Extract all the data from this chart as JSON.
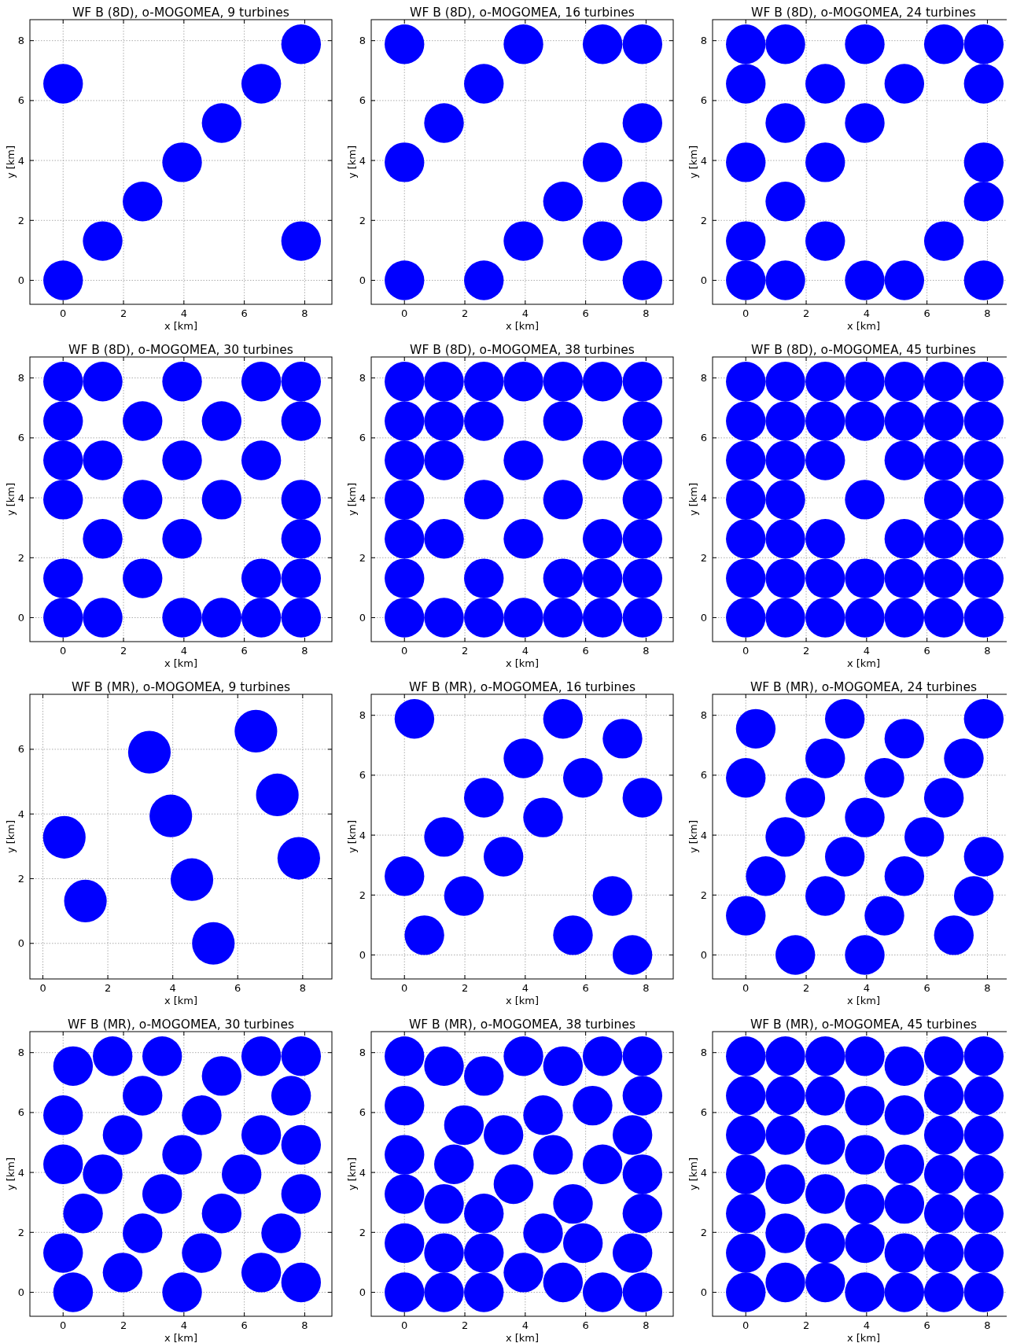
{
  "chart_data": [
    {
      "type": "scatter",
      "title": "WF B (8D), o-MOGOMEA, 9 turbines",
      "xlabel": "x [km]",
      "ylabel": "y [km]",
      "color": "#0000ff",
      "marker": "circle",
      "grid": true,
      "xlim": [
        -1.1,
        8.9
      ],
      "ylim": [
        -0.8,
        8.7
      ],
      "xticks": [
        0,
        2,
        4,
        6,
        8
      ],
      "yticks": [
        0,
        2,
        4,
        6,
        8
      ],
      "x": [
        0,
        1.31,
        2.63,
        3.94,
        5.25,
        6.56,
        7.88,
        0,
        7.88
      ],
      "values": [
        0,
        1.31,
        2.63,
        3.94,
        5.25,
        6.56,
        7.88,
        6.56,
        1.31
      ]
    },
    {
      "type": "scatter",
      "title": "WF B (8D), o-MOGOMEA, 16 turbines",
      "xlabel": "x [km]",
      "ylabel": "y [km]",
      "color": "#0000ff",
      "marker": "circle",
      "grid": true,
      "xlim": [
        -1.1,
        8.9
      ],
      "ylim": [
        -0.8,
        8.7
      ],
      "xticks": [
        0,
        2,
        4,
        6,
        8
      ],
      "yticks": [
        0,
        2,
        4,
        6,
        8
      ],
      "x": [
        0,
        3.94,
        6.56,
        7.88,
        2.63,
        1.31,
        7.88,
        0,
        6.56,
        5.25,
        7.88,
        3.94,
        6.56,
        0,
        2.63,
        7.88
      ],
      "values": [
        7.88,
        7.88,
        7.88,
        7.88,
        6.56,
        5.25,
        5.25,
        3.94,
        3.94,
        2.63,
        2.63,
        1.31,
        1.31,
        0,
        0,
        0
      ]
    },
    {
      "type": "scatter",
      "title": "WF B (8D), o-MOGOMEA, 24 turbines",
      "xlabel": "x [km]",
      "ylabel": "y [km]",
      "color": "#0000ff",
      "marker": "circle",
      "grid": true,
      "xlim": [
        -1.1,
        8.9
      ],
      "ylim": [
        -0.8,
        8.7
      ],
      "xticks": [
        0,
        2,
        4,
        6,
        8
      ],
      "yticks": [
        0,
        2,
        4,
        6,
        8
      ],
      "x": [
        0,
        1.31,
        3.94,
        6.56,
        7.88,
        0,
        2.63,
        5.25,
        7.88,
        1.31,
        3.94,
        0,
        2.63,
        7.88,
        1.31,
        7.88,
        0,
        2.63,
        6.56,
        0,
        1.31,
        3.94,
        5.25,
        7.88
      ],
      "values": [
        7.88,
        7.88,
        7.88,
        7.88,
        7.88,
        6.56,
        6.56,
        6.56,
        6.56,
        5.25,
        5.25,
        3.94,
        3.94,
        3.94,
        2.63,
        2.63,
        1.31,
        1.31,
        1.31,
        0,
        0,
        0,
        0,
        0
      ]
    },
    {
      "type": "scatter",
      "title": "WF B (8D), o-MOGOMEA, 30 turbines",
      "xlabel": "x [km]",
      "ylabel": "y [km]",
      "color": "#0000ff",
      "marker": "circle",
      "grid": true,
      "xlim": [
        -1.1,
        8.9
      ],
      "ylim": [
        -0.8,
        8.7
      ],
      "xticks": [
        0,
        2,
        4,
        6,
        8
      ],
      "yticks": [
        0,
        2,
        4,
        6,
        8
      ],
      "x": [
        0,
        1.31,
        3.94,
        6.56,
        7.88,
        0,
        2.63,
        5.25,
        7.88,
        0,
        1.31,
        3.94,
        6.56,
        0,
        2.63,
        5.25,
        7.88,
        1.31,
        3.94,
        7.88,
        0,
        2.63,
        6.56,
        7.88,
        0,
        1.31,
        3.94,
        5.25,
        6.56,
        7.88
      ],
      "values": [
        7.88,
        7.88,
        7.88,
        7.88,
        7.88,
        6.56,
        6.56,
        6.56,
        6.56,
        5.25,
        5.25,
        5.25,
        5.25,
        3.94,
        3.94,
        3.94,
        3.94,
        2.63,
        2.63,
        2.63,
        1.31,
        1.31,
        1.31,
        1.31,
        0,
        0,
        0,
        0,
        0,
        0
      ]
    },
    {
      "type": "scatter",
      "title": "WF B (8D), o-MOGOMEA, 38 turbines",
      "xlabel": "x [km]",
      "ylabel": "y [km]",
      "color": "#0000ff",
      "marker": "circle",
      "grid": true,
      "xlim": [
        -1.1,
        8.9
      ],
      "ylim": [
        -0.8,
        8.7
      ],
      "xticks": [
        0,
        2,
        4,
        6,
        8
      ],
      "yticks": [
        0,
        2,
        4,
        6,
        8
      ],
      "x": [
        0,
        1.31,
        2.63,
        3.94,
        5.25,
        6.56,
        7.88,
        0,
        1.31,
        2.63,
        5.25,
        7.88,
        0,
        1.31,
        3.94,
        6.56,
        7.88,
        0,
        2.63,
        5.25,
        7.88,
        0,
        1.31,
        3.94,
        6.56,
        7.88,
        0,
        2.63,
        5.25,
        6.56,
        7.88,
        0,
        1.31,
        2.63,
        3.94,
        5.25,
        6.56,
        7.88
      ],
      "values": [
        7.88,
        7.88,
        7.88,
        7.88,
        7.88,
        7.88,
        7.88,
        6.56,
        6.56,
        6.56,
        6.56,
        6.56,
        5.25,
        5.25,
        5.25,
        5.25,
        5.25,
        3.94,
        3.94,
        3.94,
        3.94,
        2.63,
        2.63,
        2.63,
        2.63,
        2.63,
        1.31,
        1.31,
        1.31,
        1.31,
        1.31,
        0,
        0,
        0,
        0,
        0,
        0,
        0
      ]
    },
    {
      "type": "scatter",
      "title": "WF B (8D), o-MOGOMEA, 45 turbines",
      "xlabel": "x [km]",
      "ylabel": "y [km]",
      "color": "#0000ff",
      "marker": "circle",
      "grid": true,
      "xlim": [
        -1.1,
        8.9
      ],
      "ylim": [
        -0.8,
        8.7
      ],
      "xticks": [
        0,
        2,
        4,
        6,
        8
      ],
      "yticks": [
        0,
        2,
        4,
        6,
        8
      ],
      "x": [
        0,
        1.31,
        2.63,
        3.94,
        5.25,
        6.56,
        7.88,
        0,
        1.31,
        2.63,
        3.94,
        5.25,
        6.56,
        7.88,
        0,
        1.31,
        2.63,
        5.25,
        6.56,
        7.88,
        0,
        1.31,
        3.94,
        6.56,
        7.88,
        0,
        1.31,
        2.63,
        5.25,
        6.56,
        7.88,
        0,
        1.31,
        2.63,
        3.94,
        5.25,
        6.56,
        7.88,
        0,
        1.31,
        2.63,
        3.94,
        5.25,
        6.56,
        7.88
      ],
      "values": [
        7.88,
        7.88,
        7.88,
        7.88,
        7.88,
        7.88,
        7.88,
        6.56,
        6.56,
        6.56,
        6.56,
        6.56,
        6.56,
        6.56,
        5.25,
        5.25,
        5.25,
        5.25,
        5.25,
        5.25,
        3.94,
        3.94,
        3.94,
        3.94,
        3.94,
        2.63,
        2.63,
        2.63,
        2.63,
        2.63,
        2.63,
        1.31,
        1.31,
        1.31,
        1.31,
        1.31,
        1.31,
        1.31,
        0,
        0,
        0,
        0,
        0,
        0,
        0
      ]
    },
    {
      "type": "scatter",
      "title": "WF B (MR), o-MOGOMEA, 9 turbines",
      "xlabel": "x [km]",
      "ylabel": "y [km]",
      "color": "#0000ff",
      "marker": "circle",
      "grid": true,
      "xlim": [
        -0.4,
        8.9
      ],
      "ylim": [
        -1.1,
        7.7
      ],
      "xticks": [
        0,
        2,
        4,
        6,
        8
      ],
      "yticks": [
        0,
        2,
        4,
        6
      ],
      "x": [
        0.66,
        1.31,
        3.28,
        3.94,
        4.59,
        5.25,
        6.56,
        7.22,
        7.88
      ],
      "values": [
        3.28,
        1.31,
        5.91,
        3.94,
        1.97,
        0,
        6.56,
        4.59,
        2.63
      ]
    },
    {
      "type": "scatter",
      "title": "WF B (MR), o-MOGOMEA, 16 turbines",
      "xlabel": "x [km]",
      "ylabel": "y [km]",
      "color": "#0000ff",
      "marker": "circle",
      "grid": true,
      "xlim": [
        -1.1,
        8.9
      ],
      "ylim": [
        -0.8,
        8.7
      ],
      "xticks": [
        0,
        2,
        4,
        6,
        8
      ],
      "yticks": [
        0,
        2,
        4,
        6,
        8
      ],
      "x": [
        0.33,
        5.25,
        7.22,
        3.94,
        5.91,
        7.88,
        2.63,
        4.59,
        1.31,
        3.28,
        0,
        1.97,
        6.89,
        0.66,
        5.58,
        7.55
      ],
      "values": [
        7.88,
        7.88,
        7.22,
        6.56,
        5.91,
        5.25,
        5.25,
        4.59,
        3.94,
        3.28,
        2.63,
        1.97,
        1.97,
        0.66,
        0.66,
        0
      ]
    },
    {
      "type": "scatter",
      "title": "WF B (MR), o-MOGOMEA, 24 turbines",
      "xlabel": "x [km]",
      "ylabel": "y [km]",
      "color": "#0000ff",
      "marker": "circle",
      "grid": true,
      "xlim": [
        -1.1,
        8.9
      ],
      "ylim": [
        -0.8,
        8.7
      ],
      "xticks": [
        0,
        2,
        4,
        6,
        8
      ],
      "yticks": [
        0,
        2,
        4,
        6,
        8
      ],
      "x": [
        0.33,
        3.28,
        7.88,
        5.25,
        7.22,
        2.63,
        0,
        4.59,
        1.97,
        6.56,
        3.94,
        1.31,
        5.91,
        3.28,
        7.88,
        0.66,
        5.25,
        2.63,
        7.55,
        0,
        4.59,
        6.89,
        1.64,
        3.94
      ],
      "values": [
        7.55,
        7.88,
        7.88,
        7.22,
        6.56,
        6.56,
        5.91,
        5.91,
        5.25,
        5.25,
        4.59,
        3.94,
        3.94,
        3.28,
        3.28,
        2.63,
        2.63,
        1.97,
        1.97,
        1.31,
        1.31,
        0.66,
        0,
        0
      ]
    },
    {
      "type": "scatter",
      "title": "WF B (MR), o-MOGOMEA, 30 turbines",
      "xlabel": "x [km]",
      "ylabel": "y [km]",
      "color": "#0000ff",
      "marker": "circle",
      "grid": true,
      "xlim": [
        -1.1,
        8.9
      ],
      "ylim": [
        -0.8,
        8.7
      ],
      "xticks": [
        0,
        2,
        4,
        6,
        8
      ],
      "yticks": [
        0,
        2,
        4,
        6,
        8
      ],
      "x": [
        0.33,
        1.64,
        3.28,
        6.56,
        7.88,
        5.25,
        2.63,
        7.55,
        0,
        4.59,
        1.97,
        6.56,
        7.88,
        0,
        3.94,
        1.31,
        5.91,
        3.28,
        7.88,
        0.66,
        5.25,
        2.63,
        7.22,
        0,
        4.59,
        1.97,
        6.56,
        0.33,
        3.94,
        7.88
      ],
      "values": [
        7.55,
        7.88,
        7.88,
        7.88,
        7.88,
        7.22,
        6.56,
        6.56,
        5.91,
        5.91,
        5.25,
        5.25,
        4.92,
        4.27,
        4.59,
        3.94,
        3.94,
        3.28,
        3.28,
        2.63,
        2.63,
        1.97,
        1.97,
        1.31,
        1.31,
        0.66,
        0.66,
        0,
        0,
        0.33
      ]
    },
    {
      "type": "scatter",
      "title": "WF B (MR), o-MOGOMEA, 38 turbines",
      "xlabel": "x [km]",
      "ylabel": "y [km]",
      "color": "#0000ff",
      "marker": "circle",
      "grid": true,
      "xlim": [
        -1.1,
        8.9
      ],
      "ylim": [
        -0.8,
        8.7
      ],
      "xticks": [
        0,
        2,
        4,
        6,
        8
      ],
      "yticks": [
        0,
        2,
        4,
        6,
        8
      ],
      "x": [
        0,
        1.31,
        2.63,
        3.94,
        5.25,
        6.56,
        7.88,
        7.88,
        6.23,
        0,
        4.59,
        1.97,
        7.55,
        3.28,
        0,
        4.92,
        6.56,
        1.64,
        7.88,
        3.61,
        0,
        5.58,
        1.31,
        7.88,
        2.63,
        4.59,
        0,
        5.91,
        1.31,
        2.63,
        7.55,
        3.94,
        5.25,
        0,
        1.31,
        2.63,
        6.56,
        7.88
      ],
      "values": [
        7.88,
        7.55,
        7.22,
        7.88,
        7.55,
        7.88,
        7.88,
        6.56,
        6.23,
        6.23,
        5.91,
        5.58,
        5.25,
        5.25,
        4.59,
        4.59,
        4.27,
        4.27,
        3.94,
        3.61,
        3.28,
        2.95,
        2.95,
        2.63,
        2.63,
        1.97,
        1.64,
        1.64,
        1.31,
        1.31,
        1.31,
        0.66,
        0.33,
        0,
        0,
        0,
        0,
        0
      ]
    },
    {
      "type": "scatter",
      "title": "WF B (MR), o-MOGOMEA, 45 turbines",
      "xlabel": "x [km]",
      "ylabel": "y [km]",
      "color": "#0000ff",
      "marker": "circle",
      "grid": true,
      "xlim": [
        -1.1,
        8.9
      ],
      "ylim": [
        -0.8,
        8.7
      ],
      "xticks": [
        0,
        2,
        4,
        6,
        8
      ],
      "yticks": [
        0,
        2,
        4,
        6,
        8
      ],
      "x": [
        0,
        0,
        0,
        0,
        0,
        0,
        0,
        1.31,
        1.31,
        1.31,
        1.31,
        1.31,
        1.31,
        2.63,
        2.63,
        2.63,
        2.63,
        2.63,
        2.63,
        3.94,
        3.94,
        3.94,
        3.94,
        3.94,
        3.94,
        5.25,
        5.25,
        5.25,
        5.25,
        5.25,
        5.25,
        6.56,
        6.56,
        6.56,
        6.56,
        6.56,
        6.56,
        6.56,
        7.88,
        7.88,
        7.88,
        7.88,
        7.88,
        7.88,
        7.88
      ],
      "values": [
        7.88,
        6.56,
        5.25,
        3.94,
        2.63,
        1.31,
        0,
        7.88,
        6.56,
        5.25,
        3.61,
        1.97,
        0.33,
        7.88,
        6.56,
        4.92,
        3.28,
        1.64,
        0.33,
        7.88,
        6.23,
        4.59,
        2.95,
        1.64,
        0,
        7.55,
        5.91,
        4.27,
        2.95,
        1.31,
        0,
        7.88,
        6.56,
        5.25,
        3.94,
        2.63,
        1.31,
        0,
        7.88,
        6.56,
        5.25,
        3.94,
        2.63,
        1.31,
        0
      ]
    }
  ]
}
